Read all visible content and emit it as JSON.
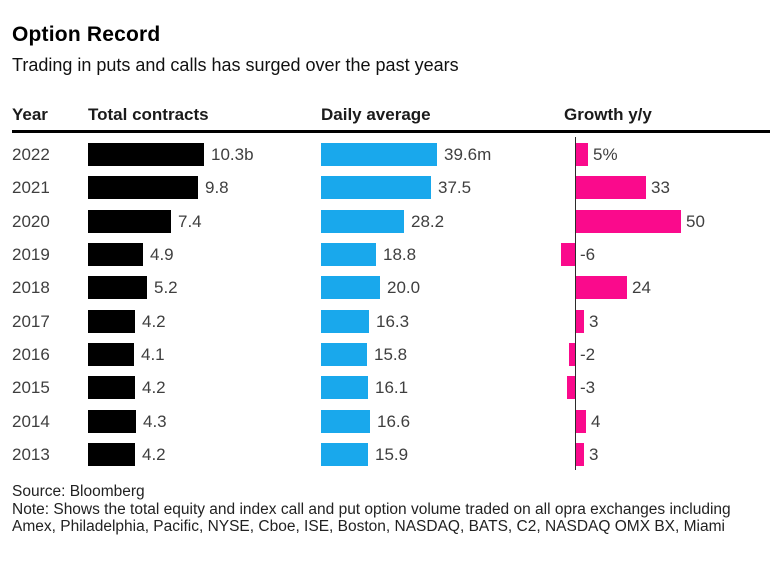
{
  "header": {
    "title": "Option Record",
    "subtitle": "Trading in puts and calls has surged over the past years"
  },
  "chart_data": {
    "type": "bar",
    "title": "Option Record",
    "subtitle": "Trading in puts and calls has surged over the past years",
    "columns": [
      "Year",
      "Total contracts",
      "Daily average",
      "Growth y/y"
    ],
    "units": {
      "total_contracts": "billions",
      "daily_average": "millions",
      "growth_yy": "percent"
    },
    "rows": [
      {
        "year": "2022",
        "total_contracts": 10.3,
        "total_label": "10.3b",
        "daily_average": 39.6,
        "daily_label": "39.6m",
        "growth": 5,
        "growth_label": "5%"
      },
      {
        "year": "2021",
        "total_contracts": 9.8,
        "total_label": "9.8",
        "daily_average": 37.5,
        "daily_label": "37.5",
        "growth": 33,
        "growth_label": "33"
      },
      {
        "year": "2020",
        "total_contracts": 7.4,
        "total_label": "7.4",
        "daily_average": 28.2,
        "daily_label": "28.2",
        "growth": 50,
        "growth_label": "50"
      },
      {
        "year": "2019",
        "total_contracts": 4.9,
        "total_label": "4.9",
        "daily_average": 18.8,
        "daily_label": "18.8",
        "growth": -6,
        "growth_label": "-6"
      },
      {
        "year": "2018",
        "total_contracts": 5.2,
        "total_label": "5.2",
        "daily_average": 20.0,
        "daily_label": "20.0",
        "growth": 24,
        "growth_label": "24"
      },
      {
        "year": "2017",
        "total_contracts": 4.2,
        "total_label": "4.2",
        "daily_average": 16.3,
        "daily_label": "16.3",
        "growth": 3,
        "growth_label": "3"
      },
      {
        "year": "2016",
        "total_contracts": 4.1,
        "total_label": "4.1",
        "daily_average": 15.8,
        "daily_label": "15.8",
        "growth": -2,
        "growth_label": "-2"
      },
      {
        "year": "2015",
        "total_contracts": 4.2,
        "total_label": "4.2",
        "daily_average": 16.1,
        "daily_label": "16.1",
        "growth": -3,
        "growth_label": "-3"
      },
      {
        "year": "2014",
        "total_contracts": 4.3,
        "total_label": "4.3",
        "daily_average": 16.6,
        "daily_label": "16.6",
        "growth": 4,
        "growth_label": "4"
      },
      {
        "year": "2013",
        "total_contracts": 4.2,
        "total_label": "4.2",
        "daily_average": 15.9,
        "daily_label": "15.9",
        "growth": 3,
        "growth_label": "3"
      }
    ],
    "layout": {
      "total_axis_max": 10.3,
      "daily_axis_max": 39.6,
      "growth_axis_max": 50,
      "grid": "off",
      "legend": "none",
      "negative_bars_extend_left_of_axis": true
    },
    "colors": {
      "total_contracts_bar": "#000000",
      "daily_average_bar": "#19A8EC",
      "growth_bar": "#FA0A8C",
      "label_text": "#3f3f3f",
      "axis_line": "#2b2b2b"
    }
  },
  "footer": {
    "source": "Source: Bloomberg",
    "note": "Note: Shows the total equity and index call and put option volume traded on all opra exchanges including Amex, Philadelphia, Pacific, NYSE, Cboe, ISE, Boston, NASDAQ, BATS, C2, NASDAQ OMX BX, Miami"
  }
}
